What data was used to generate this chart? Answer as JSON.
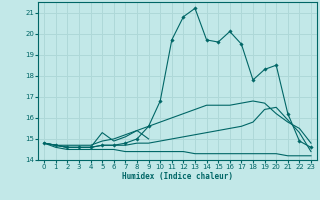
{
  "xlabel": "Humidex (Indice chaleur)",
  "bg_color": "#c2e8e8",
  "grid_color": "#aed8d8",
  "line_color": "#006666",
  "xlim": [
    -0.5,
    23.5
  ],
  "ylim": [
    14.0,
    21.5
  ],
  "xticks": [
    0,
    1,
    2,
    3,
    4,
    5,
    6,
    7,
    8,
    9,
    10,
    11,
    12,
    13,
    14,
    15,
    16,
    17,
    18,
    19,
    20,
    21,
    22,
    23
  ],
  "yticks": [
    14,
    15,
    16,
    17,
    18,
    19,
    20,
    21
  ],
  "curve_main_x": [
    0,
    1,
    2,
    3,
    4,
    5,
    6,
    7,
    8,
    9,
    10,
    11,
    12,
    13,
    14,
    15,
    16,
    17,
    18,
    19,
    20,
    21,
    22,
    23
  ],
  "curve_main_y": [
    14.8,
    14.7,
    14.6,
    14.6,
    14.6,
    14.7,
    14.7,
    14.8,
    15.0,
    15.6,
    16.8,
    19.7,
    20.8,
    21.2,
    19.7,
    19.6,
    20.1,
    19.5,
    17.8,
    18.3,
    18.5,
    16.2,
    14.9,
    14.6
  ],
  "curve_rise_x": [
    0,
    1,
    2,
    3,
    4,
    5,
    6,
    7,
    8,
    9,
    10,
    11,
    12,
    13,
    14,
    15,
    16,
    17,
    18,
    19,
    20,
    21,
    22,
    23
  ],
  "curve_rise_y": [
    14.8,
    14.7,
    14.7,
    14.7,
    14.7,
    14.9,
    15.0,
    15.2,
    15.4,
    15.6,
    15.8,
    16.0,
    16.2,
    16.4,
    16.6,
    16.6,
    16.6,
    16.7,
    16.8,
    16.7,
    16.2,
    15.8,
    15.5,
    14.8
  ],
  "curve_diag_x": [
    0,
    1,
    2,
    3,
    4,
    5,
    6,
    7,
    8,
    9,
    10,
    11,
    12,
    13,
    14,
    15,
    16,
    17,
    18,
    19,
    20,
    21,
    22,
    23
  ],
  "curve_diag_y": [
    14.8,
    14.7,
    14.6,
    14.6,
    14.6,
    14.7,
    14.7,
    14.7,
    14.8,
    14.8,
    14.9,
    15.0,
    15.1,
    15.2,
    15.3,
    15.4,
    15.5,
    15.6,
    15.8,
    16.4,
    16.5,
    15.9,
    15.3,
    14.4
  ],
  "curve_flat_x": [
    0,
    1,
    2,
    3,
    4,
    5,
    6,
    7,
    8,
    9,
    10,
    11,
    12,
    13,
    14,
    15,
    16,
    17,
    18,
    19,
    20,
    21,
    22,
    23
  ],
  "curve_flat_y": [
    14.8,
    14.6,
    14.5,
    14.5,
    14.5,
    14.5,
    14.5,
    14.4,
    14.4,
    14.4,
    14.4,
    14.4,
    14.4,
    14.3,
    14.3,
    14.3,
    14.3,
    14.3,
    14.3,
    14.3,
    14.3,
    14.2,
    14.2,
    14.2
  ],
  "curve_wiggle_x": [
    0,
    1,
    2,
    3,
    4,
    5,
    6,
    7,
    8,
    9
  ],
  "curve_wiggle_y": [
    14.8,
    14.7,
    14.6,
    14.6,
    14.6,
    15.3,
    14.9,
    15.1,
    15.4,
    15.0
  ]
}
